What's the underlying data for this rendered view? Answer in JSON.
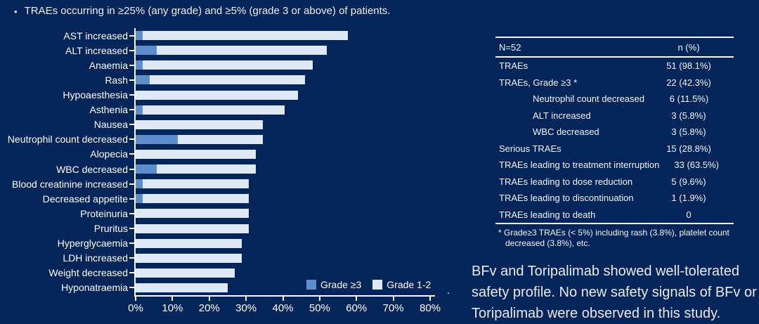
{
  "colors": {
    "background": "#04255A",
    "grade3": "#5B8ECB",
    "grade12": "#DFE9F5",
    "axis": "#FFFFFF",
    "text": "#FFFFFF"
  },
  "header": {
    "bullet": "•",
    "text": "TRAEs occurring in ≥25% (any grade) and ≥5% (grade 3 or above) of patients."
  },
  "chart_data": {
    "type": "bar",
    "orientation": "horizontal",
    "stacked": true,
    "title": "",
    "xlabel": "",
    "ylabel": "",
    "xlim": [
      0,
      80
    ],
    "grid": false,
    "legend_position": "bottom-right",
    "categories": [
      "AST increased",
      "ALT increased",
      "Anaemia",
      "Rash",
      "Hypoaesthesia",
      "Asthenia",
      "Nausea",
      "Neutrophil count decreased",
      "Alopecia",
      "WBC decreased",
      "Blood creatinine increased",
      "Decreased appetite",
      "Proteinuria",
      "Pruritus",
      "Hyperglycaemia",
      "LDH increased",
      "Weight decreased",
      "Hyponatraemia"
    ],
    "series": [
      {
        "name": "Grade ≥3",
        "values": [
          1.9,
          5.8,
          1.9,
          3.8,
          0,
          1.9,
          0,
          11.5,
          0,
          5.8,
          1.9,
          1.9,
          0,
          0,
          0,
          0,
          0,
          0
        ]
      },
      {
        "name": "Grade 1-2",
        "values": [
          55.8,
          46.2,
          46.2,
          42.3,
          44.2,
          38.5,
          34.6,
          23.1,
          32.7,
          26.9,
          28.8,
          28.8,
          30.8,
          30.8,
          28.8,
          28.8,
          26.9,
          25.0
        ]
      }
    ],
    "totals_any_grade": [
      57.7,
      51.9,
      48.1,
      46.2,
      44.2,
      40.4,
      34.6,
      34.6,
      32.7,
      32.7,
      30.8,
      30.8,
      30.8,
      30.8,
      28.8,
      28.8,
      26.9,
      25.0
    ],
    "x_tick_labels": [
      "0%",
      "10%",
      "20%",
      "30%",
      "40%",
      "50%",
      "60%",
      "70%",
      "80%"
    ],
    "legend": [
      {
        "label": "Grade ≥3",
        "color": "#5B8ECB"
      },
      {
        "label": "Grade 1-2",
        "color": "#DFE9F5"
      }
    ]
  },
  "table": {
    "header": {
      "col1": "N=52",
      "col2": "n (%)"
    },
    "rows": [
      {
        "label": "TRAEs",
        "value": "51 (98.1%)",
        "indent": false
      },
      {
        "label": "TRAEs, Grade ≥3 *",
        "value": "22 (42.3%)",
        "indent": false
      },
      {
        "label": "Neutrophil count decreased",
        "value": "6 (11.5%)",
        "indent": true
      },
      {
        "label": "ALT increased",
        "value": "3 (5.8%)",
        "indent": true
      },
      {
        "label": "WBC decreased",
        "value": "3 (5.8%)",
        "indent": true
      },
      {
        "label": "Serious TRAEs",
        "value": "15 (28.8%)",
        "indent": false
      },
      {
        "label": "TRAEs leading to treatment interruption",
        "value": "33 (63.5%)",
        "indent": false
      },
      {
        "label": "TRAEs leading to dose reduction",
        "value": "5 (9.6%)",
        "indent": false
      },
      {
        "label": "TRAEs leading to discontinuation",
        "value": "1 (1.9%)",
        "indent": false
      },
      {
        "label": "TRAEs leading to death",
        "value": "0",
        "indent": false
      }
    ],
    "footnote": "* Grade≥3 TRAEs (< 5%) including rash (3.8%), platelet count decreased (3.8%), etc."
  },
  "summary": {
    "lines": [
      "BFv and Toripalimab showed well-tolerated",
      "safety profile. No new safety signals of BFv or",
      "Toripalimab were observed in this study."
    ]
  },
  "axis_extra": {
    "stray_period": "."
  }
}
